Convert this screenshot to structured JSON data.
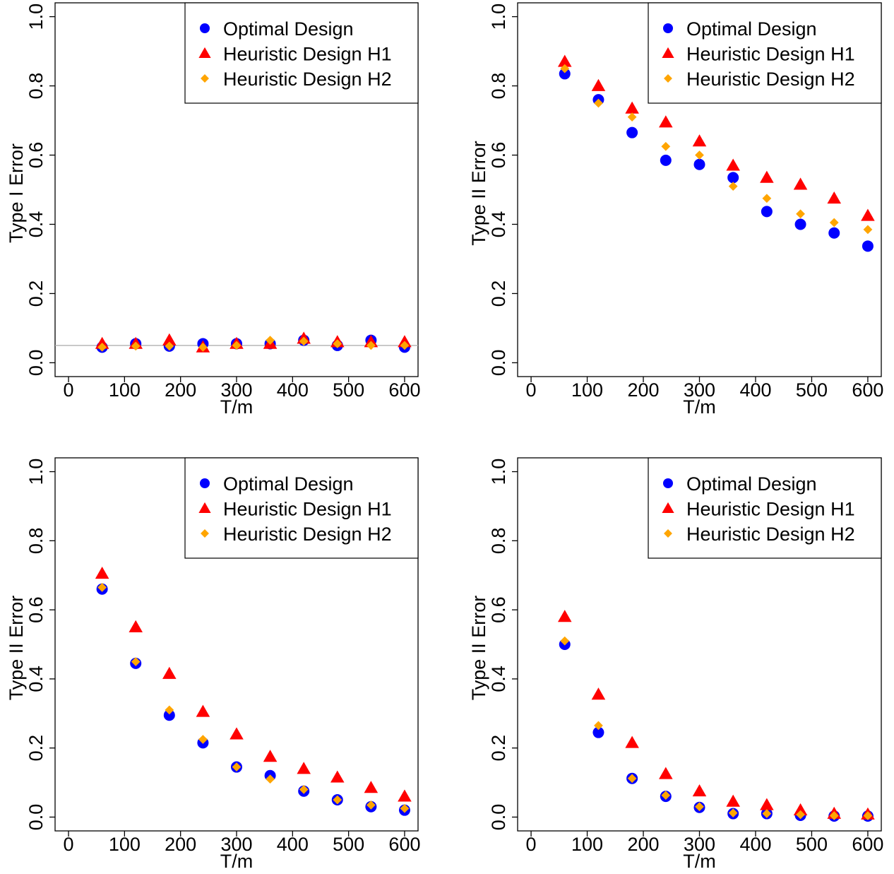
{
  "legend": {
    "entries": [
      {
        "label": "Optimal Design",
        "color": "#0000ff",
        "shape": "circle"
      },
      {
        "label": "Heuristic Design H1",
        "color": "#ff0000",
        "shape": "triangle"
      },
      {
        "label": "Heuristic Design H2",
        "color": "#ffa500",
        "shape": "diamond"
      }
    ],
    "placement": "top-right"
  },
  "chart_data": [
    {
      "type": "scatter",
      "xlabel": "T/m",
      "ylabel": "Type I Error",
      "xlim": [
        0,
        600
      ],
      "ylim": [
        0,
        1
      ],
      "xticks": [
        "0",
        "100",
        "200",
        "300",
        "400",
        "500",
        "600"
      ],
      "yticks": [
        "0.0",
        "0.2",
        "0.4",
        "0.6",
        "0.8",
        "1.0"
      ],
      "reference_line": 0.05,
      "x": [
        60,
        120,
        180,
        240,
        300,
        360,
        420,
        480,
        540,
        600
      ],
      "series": [
        {
          "name": "Optimal Design",
          "values": [
            0.045,
            0.055,
            0.048,
            0.055,
            0.055,
            0.055,
            0.065,
            0.05,
            0.065,
            0.045
          ]
        },
        {
          "name": "Heuristic Design H1",
          "values": [
            0.055,
            0.055,
            0.065,
            0.045,
            0.055,
            0.055,
            0.07,
            0.06,
            0.06,
            0.06
          ]
        },
        {
          "name": "Heuristic Design H2",
          "values": [
            0.045,
            0.048,
            0.048,
            0.045,
            0.05,
            0.065,
            0.062,
            0.055,
            0.05,
            0.05
          ]
        }
      ]
    },
    {
      "type": "scatter",
      "xlabel": "T/m",
      "ylabel": "Type II Error",
      "xlim": [
        0,
        600
      ],
      "ylim": [
        0,
        1
      ],
      "xticks": [
        "0",
        "100",
        "200",
        "300",
        "400",
        "500",
        "600"
      ],
      "yticks": [
        "0.0",
        "0.2",
        "0.4",
        "0.6",
        "0.8",
        "1.0"
      ],
      "x": [
        60,
        120,
        180,
        240,
        300,
        360,
        420,
        480,
        540,
        600
      ],
      "series": [
        {
          "name": "Optimal Design",
          "values": [
            0.835,
            0.76,
            0.665,
            0.585,
            0.573,
            0.535,
            0.437,
            0.4,
            0.375,
            0.337
          ]
        },
        {
          "name": "Heuristic Design H1",
          "values": [
            0.87,
            0.8,
            0.735,
            0.695,
            0.64,
            0.57,
            0.535,
            0.515,
            0.475,
            0.425
          ]
        },
        {
          "name": "Heuristic Design H2",
          "values": [
            0.85,
            0.75,
            0.71,
            0.625,
            0.6,
            0.51,
            0.475,
            0.43,
            0.405,
            0.385
          ]
        }
      ]
    },
    {
      "type": "scatter",
      "xlabel": "T/m",
      "ylabel": "Type II Error",
      "xlim": [
        0,
        600
      ],
      "ylim": [
        0,
        1
      ],
      "xticks": [
        "0",
        "100",
        "200",
        "300",
        "400",
        "500",
        "600"
      ],
      "yticks": [
        "0.0",
        "0.2",
        "0.4",
        "0.6",
        "0.8",
        "1.0"
      ],
      "x": [
        60,
        120,
        180,
        240,
        300,
        360,
        420,
        480,
        540,
        600
      ],
      "series": [
        {
          "name": "Optimal Design",
          "values": [
            0.66,
            0.445,
            0.295,
            0.215,
            0.145,
            0.12,
            0.075,
            0.05,
            0.03,
            0.02
          ]
        },
        {
          "name": "Heuristic Design H1",
          "values": [
            0.705,
            0.55,
            0.415,
            0.305,
            0.24,
            0.175,
            0.14,
            0.115,
            0.085,
            0.06
          ]
        },
        {
          "name": "Heuristic Design H2",
          "values": [
            0.665,
            0.45,
            0.31,
            0.225,
            0.145,
            0.11,
            0.08,
            0.05,
            0.035,
            0.025
          ]
        }
      ]
    },
    {
      "type": "scatter",
      "xlabel": "T/m",
      "ylabel": "Type II Error",
      "xlim": [
        0,
        600
      ],
      "ylim": [
        0,
        1
      ],
      "xticks": [
        "0",
        "100",
        "200",
        "300",
        "400",
        "500",
        "600"
      ],
      "yticks": [
        "0.0",
        "0.2",
        "0.4",
        "0.6",
        "0.8",
        "1.0"
      ],
      "x": [
        60,
        120,
        180,
        240,
        300,
        360,
        420,
        480,
        540,
        600
      ],
      "series": [
        {
          "name": "Optimal Design",
          "values": [
            0.5,
            0.245,
            0.112,
            0.06,
            0.028,
            0.01,
            0.01,
            0.005,
            0.003,
            0.003
          ]
        },
        {
          "name": "Heuristic Design H1",
          "values": [
            0.58,
            0.355,
            0.215,
            0.125,
            0.075,
            0.045,
            0.035,
            0.02,
            0.01,
            0.008
          ]
        },
        {
          "name": "Heuristic Design H2",
          "values": [
            0.51,
            0.265,
            0.112,
            0.063,
            0.03,
            0.012,
            0.01,
            0.007,
            0.004,
            0.004
          ]
        }
      ]
    }
  ]
}
